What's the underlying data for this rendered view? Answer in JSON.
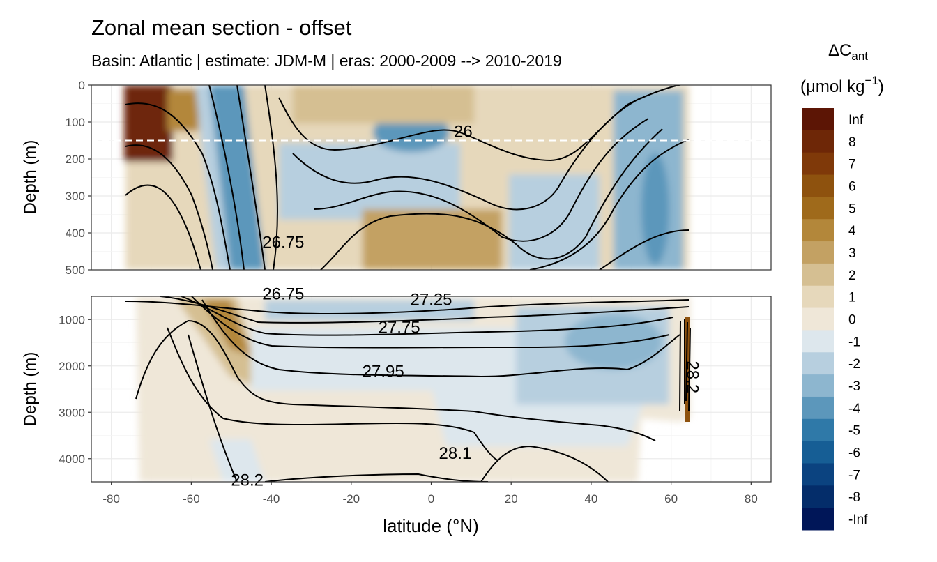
{
  "chart_data": {
    "type": "heatmap",
    "title": "Zonal mean section - offset",
    "subtitle": "Basin: Atlantic | estimate: JDM-M | eras: 2000-2009 --> 2010-2019",
    "xlabel": "latitude (°N)",
    "ylabel": "Depth (m)",
    "xlim": [
      -85,
      85
    ],
    "x_ticks": [
      -80,
      -60,
      -40,
      -20,
      0,
      20,
      40,
      60,
      80
    ],
    "x_tick_labels": [
      "-80",
      "-60",
      "-40",
      "-20",
      "0",
      "20",
      "40",
      "60",
      "80"
    ],
    "reference_line_depth": 150,
    "panels": [
      {
        "name": "upper",
        "ylim": [
          0,
          500
        ],
        "y_ticks": [
          0,
          100,
          200,
          300,
          400,
          500
        ],
        "y_tick_labels": [
          "0",
          "100",
          "200",
          "300",
          "400",
          "500"
        ],
        "contour_labels": [
          {
            "text": "26",
            "lat": 8,
            "depth": 125
          },
          {
            "text": "26.75",
            "lat": -37,
            "depth": 425
          }
        ]
      },
      {
        "name": "lower",
        "ylim": [
          500,
          4500
        ],
        "y_ticks": [
          1000,
          2000,
          3000,
          4000
        ],
        "y_tick_labels": [
          "1000",
          "2000",
          "3000",
          "4000"
        ],
        "contour_labels": [
          {
            "text": "26.75",
            "lat": -37,
            "depth": 450
          },
          {
            "text": "27.25",
            "lat": 0,
            "depth": 570
          },
          {
            "text": "27.75",
            "lat": -8,
            "depth": 1170
          },
          {
            "text": "27.95",
            "lat": -12,
            "depth": 2120
          },
          {
            "text": "28.1",
            "lat": 6,
            "depth": 3880
          },
          {
            "text": "28.2",
            "lat": -46,
            "depth": 4460
          },
          {
            "text": "28.2",
            "lat": 64,
            "depth": 2120
          }
        ]
      }
    ],
    "legend": {
      "title": "ΔC",
      "title_sub": "ant",
      "units_prefix": "(μmol kg",
      "units_sup": "−1",
      "units_suffix": ")",
      "position": "right",
      "bins": [
        {
          "label": "Inf",
          "color": "#5c1505"
        },
        {
          "label": "8",
          "color": "#6e2707"
        },
        {
          "label": "7",
          "color": "#7f3909"
        },
        {
          "label": "6",
          "color": "#8e520e"
        },
        {
          "label": "5",
          "color": "#9f6a1b"
        },
        {
          "label": "4",
          "color": "#b3873a"
        },
        {
          "label": "3",
          "color": "#c3a163"
        },
        {
          "label": "2",
          "color": "#d5bf92"
        },
        {
          "label": "1",
          "color": "#e6d8bb"
        },
        {
          "label": "0",
          "color": "#efe7d8"
        },
        {
          "label": "-1",
          "color": "#dde7ed"
        },
        {
          "label": "-2",
          "color": "#b7cfdf"
        },
        {
          "label": "-3",
          "color": "#8db6cf"
        },
        {
          "label": "-4",
          "color": "#5c97bb"
        },
        {
          "label": "-5",
          "color": "#2f79a8"
        },
        {
          "label": "-6",
          "color": "#165e95"
        },
        {
          "label": "-7",
          "color": "#0b4380"
        },
        {
          "label": "-8",
          "color": "#042d6a"
        },
        {
          "label": "-Inf",
          "color": "#001658"
        }
      ]
    }
  }
}
